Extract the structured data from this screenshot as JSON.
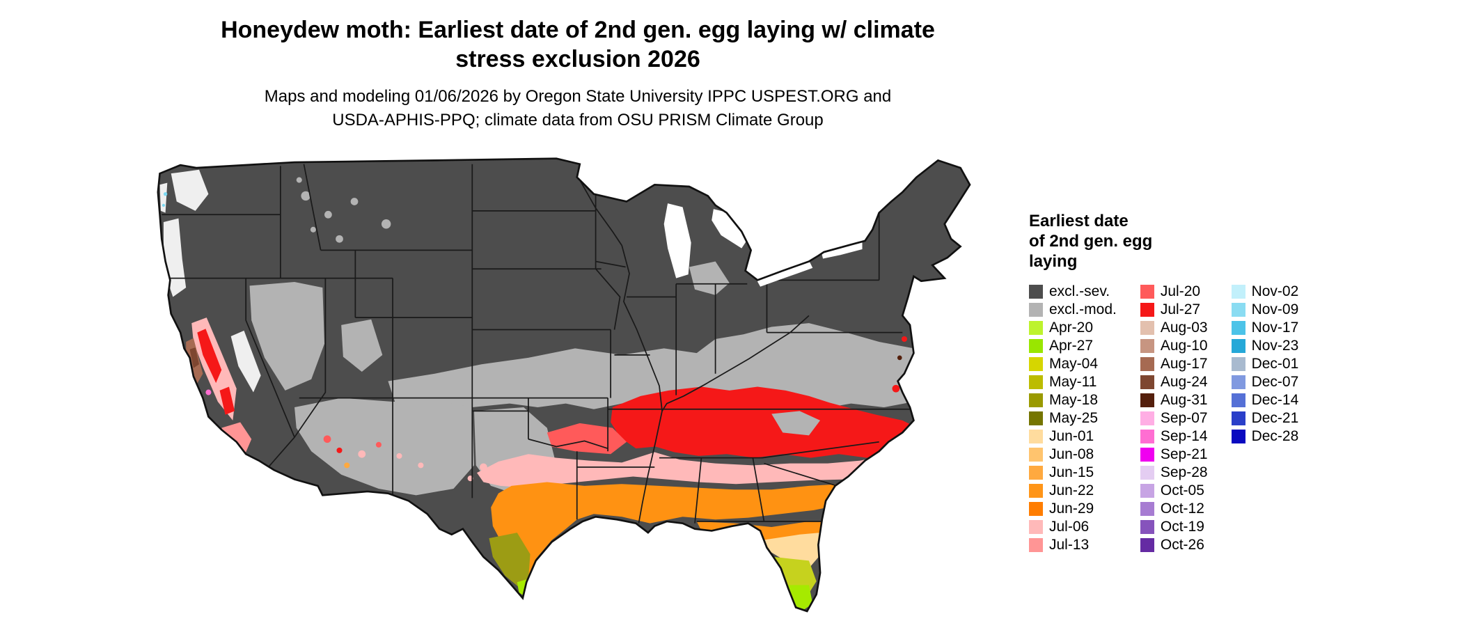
{
  "title": {
    "line1": "Honeydew moth: Earliest date of 2nd gen. egg laying w/ climate",
    "line2": "stress exclusion 2026"
  },
  "subtitle": {
    "line1": "Maps and modeling 01/06/2026 by Oregon State University IPPC USPEST.ORG and",
    "line2": "USDA-APHIS-PPQ; climate data from OSU PRISM Climate Group"
  },
  "legend": {
    "title_lines": [
      "Earliest date",
      "of 2nd gen. egg",
      "laying"
    ],
    "columns": [
      {
        "entries": [
          {
            "label": "excl.-sev.",
            "color": "#4d4d4d"
          },
          {
            "label": "excl.-mod.",
            "color": "#b3b3b3"
          },
          {
            "label": "Apr-20",
            "color": "#bdf32d"
          },
          {
            "label": "Apr-27",
            "color": "#99e600"
          },
          {
            "label": "May-04",
            "color": "#d6d600"
          },
          {
            "label": "May-11",
            "color": "#bcbc00"
          },
          {
            "label": "May-18",
            "color": "#9a9a00"
          },
          {
            "label": "May-25",
            "color": "#757500"
          },
          {
            "label": "Jun-01",
            "color": "#ffdc9e"
          },
          {
            "label": "Jun-08",
            "color": "#ffc46e"
          },
          {
            "label": "Jun-15",
            "color": "#ffa93f"
          },
          {
            "label": "Jun-22",
            "color": "#ff9518"
          },
          {
            "label": "Jun-29",
            "color": "#ff7d00"
          },
          {
            "label": "Jul-06",
            "color": "#ffb9b9"
          },
          {
            "label": "Jul-13",
            "color": "#ff9595"
          }
        ]
      },
      {
        "entries": [
          {
            "label": "Jul-20",
            "color": "#ff5a5a"
          },
          {
            "label": "Jul-27",
            "color": "#f51818"
          },
          {
            "label": "Aug-03",
            "color": "#e3c0ae"
          },
          {
            "label": "Aug-10",
            "color": "#c79581"
          },
          {
            "label": "Aug-17",
            "color": "#a66a52"
          },
          {
            "label": "Aug-24",
            "color": "#7e4630"
          },
          {
            "label": "Aug-31",
            "color": "#541f0c"
          },
          {
            "label": "Sep-07",
            "color": "#ffaee4"
          },
          {
            "label": "Sep-14",
            "color": "#ff6ed2"
          },
          {
            "label": "Sep-21",
            "color": "#f000f0"
          },
          {
            "label": "Sep-28",
            "color": "#e4cdf2"
          },
          {
            "label": "Oct-05",
            "color": "#c7a4e4"
          },
          {
            "label": "Oct-12",
            "color": "#a77cd2"
          },
          {
            "label": "Oct-19",
            "color": "#8653bc"
          },
          {
            "label": "Oct-26",
            "color": "#652ba3"
          }
        ]
      },
      {
        "entries": [
          {
            "label": "Nov-02",
            "color": "#c2f0fb"
          },
          {
            "label": "Nov-09",
            "color": "#8adcf2"
          },
          {
            "label": "Nov-17",
            "color": "#4cc3e8"
          },
          {
            "label": "Nov-23",
            "color": "#25a8d8"
          },
          {
            "label": "Dec-01",
            "color": "#a8bacf"
          },
          {
            "label": "Dec-07",
            "color": "#8099e0"
          },
          {
            "label": "Dec-14",
            "color": "#5570d6"
          },
          {
            "label": "Dec-21",
            "color": "#2a3fc9"
          },
          {
            "label": "Dec-28",
            "color": "#0a0ac0"
          }
        ]
      }
    ]
  },
  "map": {
    "palette": {
      "excl_sev": "#4d4d4d",
      "excl_mod": "#b3b3b3",
      "pale": "#efefef",
      "water": "#ffffff",
      "jul27": "#f51818",
      "jul20": "#ff5a5a",
      "jul13": "#ff9595",
      "jul06": "#ffb9b9",
      "jun_band": "#ff9212",
      "jun15": "#ffa93f",
      "jun01": "#ffdc9e",
      "may_fl": "#c6d21e",
      "apr_tip": "#a6ea00",
      "may_tx": "#9c9c14",
      "aug17": "#a66a52",
      "aug24": "#7e4630",
      "aug31": "#541f0c",
      "sep14": "#ff6ed2",
      "sep21": "#f000f0",
      "oct12": "#a77cd2",
      "oct19": "#8653bc",
      "nov09": "#7cd9f2"
    }
  }
}
